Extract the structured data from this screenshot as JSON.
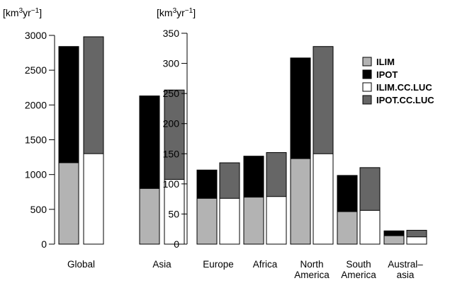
{
  "chart_data": [
    {
      "type": "bar",
      "units": [
        "[km",
        "3",
        "yr",
        "−1",
        "]"
      ],
      "categories": [
        "Global",
        "Asia"
      ],
      "ylim": [
        0,
        3000
      ],
      "yticks": [
        "0",
        "500",
        "1000",
        "1500",
        "2000",
        "2500",
        "3000"
      ],
      "bar_pairs": [
        {
          "back": "IPOT",
          "front": "ILIM"
        },
        {
          "back": "IPOT.CC.LUC",
          "front": "ILIM.CC.LUC"
        }
      ],
      "series": [
        {
          "name": "ILIM",
          "color": "#b3b3b3",
          "values": [
            1170,
            800
          ]
        },
        {
          "name": "IPOT",
          "color": "#000000",
          "values": [
            2840,
            2130
          ]
        },
        {
          "name": "ILIM.CC.LUC",
          "color": "#ffffff",
          "values": [
            1300,
            930
          ]
        },
        {
          "name": "IPOT.CC.LUC",
          "color": "#666666",
          "values": [
            2980,
            2215
          ]
        }
      ],
      "grid": false
    },
    {
      "type": "bar",
      "units": [
        "[km",
        "3",
        "yr",
        "−1",
        "]"
      ],
      "categories": [
        [
          "Europe"
        ],
        [
          "Africa"
        ],
        [
          "North",
          "America"
        ],
        [
          "South",
          "America"
        ],
        [
          "Austral–",
          "asia"
        ]
      ],
      "ylim": [
        0,
        350
      ],
      "yticks": [
        "0",
        "50",
        "100",
        "150",
        "200",
        "250",
        "300",
        "350"
      ],
      "bar_pairs": [
        {
          "back": "IPOT",
          "front": "ILIM"
        },
        {
          "back": "IPOT.CC.LUC",
          "front": "ILIM.CC.LUC"
        }
      ],
      "series": [
        {
          "name": "ILIM",
          "color": "#b3b3b3",
          "values": [
            76,
            78,
            142,
            54,
            14
          ]
        },
        {
          "name": "IPOT",
          "color": "#000000",
          "values": [
            123,
            146,
            309,
            114,
            22
          ]
        },
        {
          "name": "ILIM.CC.LUC",
          "color": "#ffffff",
          "values": [
            76,
            79,
            150,
            56,
            12
          ]
        },
        {
          "name": "IPOT.CC.LUC",
          "color": "#666666",
          "values": [
            135,
            152,
            328,
            127,
            23
          ]
        }
      ],
      "legend": {
        "placement": "top-right",
        "entries": [
          {
            "label": "ILIM",
            "color": "#b3b3b3"
          },
          {
            "label": "IPOT",
            "color": "#000000"
          },
          {
            "label": "ILIM.CC.LUC",
            "color": "#ffffff"
          },
          {
            "label": "IPOT.CC.LUC",
            "color": "#666666"
          }
        ]
      },
      "grid": false
    }
  ]
}
